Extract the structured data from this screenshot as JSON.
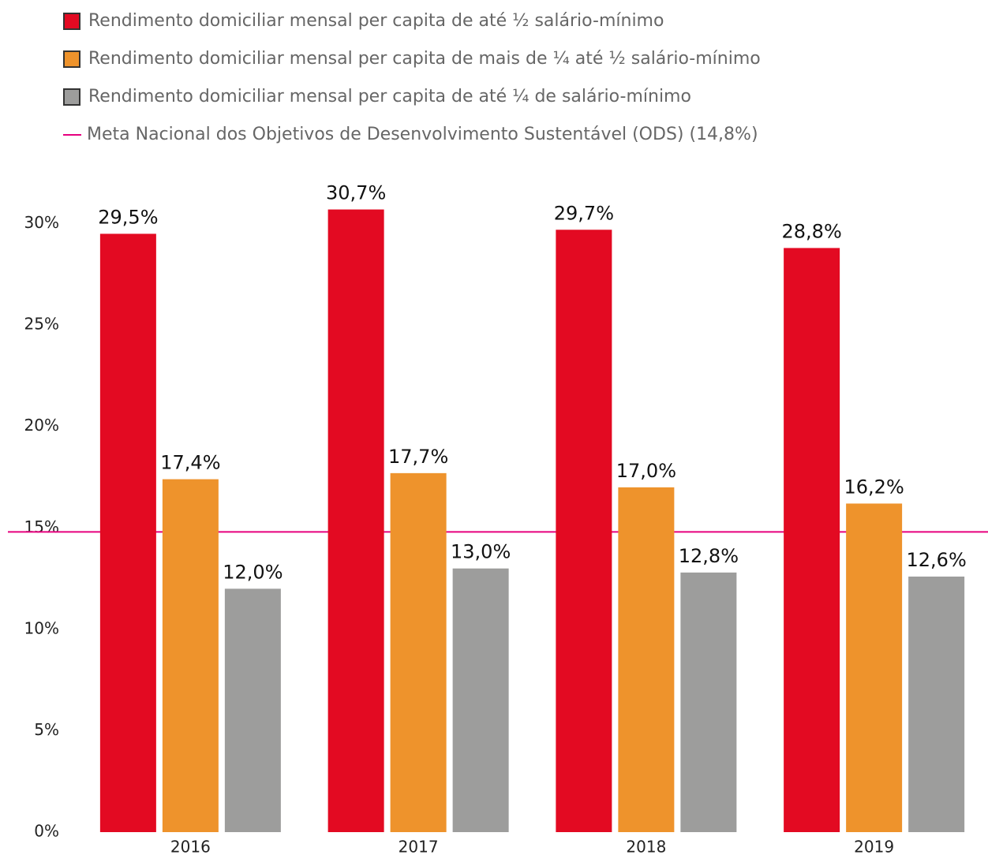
{
  "chart_data": {
    "type": "bar",
    "categories": [
      "2016",
      "2017",
      "2018",
      "2019"
    ],
    "series": [
      {
        "name": "Rendimento domiciliar mensal per capita de até ½ salário-mínimo",
        "color": "#e30a22",
        "values": [
          29.5,
          30.7,
          29.7,
          28.8
        ],
        "value_labels": [
          "29,5%",
          "30,7%",
          "29,7%",
          "28,8%"
        ]
      },
      {
        "name": "Rendimento domiciliar mensal per capita de mais de ¼ até ½  salário-mínimo",
        "color": "#ee932c",
        "values": [
          17.4,
          17.7,
          17.0,
          16.2
        ],
        "value_labels": [
          "17,4%",
          "17,7%",
          "17,0%",
          "16,2%"
        ]
      },
      {
        "name": "Rendimento domiciliar mensal per capita de até ¼ de salário-mínimo",
        "color": "#9d9d9c",
        "values": [
          12.0,
          13.0,
          12.8,
          12.6
        ],
        "value_labels": [
          "12,0%",
          "13,0%",
          "12,8%",
          "12,6%"
        ]
      }
    ],
    "reference_line": {
      "name": "Meta Nacional dos Objetivos de Desenvolvimento Sustentável (ODS) (14,8%)",
      "value": 14.8,
      "color": "#e6007e"
    },
    "ylim": [
      0,
      31.5
    ],
    "yticks": [
      {
        "value": 0,
        "label": "0%"
      },
      {
        "value": 5,
        "label": "5%"
      },
      {
        "value": 10,
        "label": "10%"
      },
      {
        "value": 15,
        "label": "15%"
      },
      {
        "value": 20,
        "label": "20%"
      },
      {
        "value": 25,
        "label": "25%"
      },
      {
        "value": 30,
        "label": "30%"
      }
    ],
    "grid": false
  }
}
